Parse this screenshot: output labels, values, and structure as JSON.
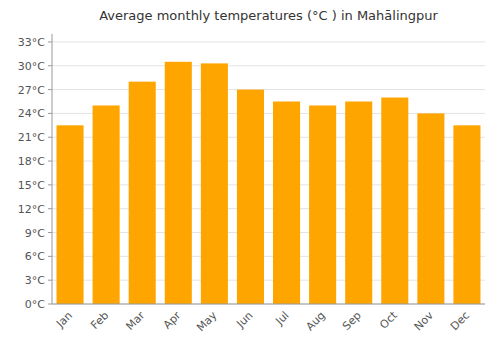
{
  "chart_data": {
    "type": "bar",
    "title": "Average monthly temperatures (°C ) in Mahā​lingpur",
    "categories": [
      "Jan",
      "Feb",
      "Mar",
      "Apr",
      "May",
      "Jun",
      "Jul",
      "Aug",
      "Sep",
      "Oct",
      "Nov",
      "Dec"
    ],
    "values": [
      22.5,
      25.0,
      28.0,
      30.5,
      30.3,
      27.0,
      25.5,
      25.0,
      25.5,
      26.0,
      24.0,
      22.5
    ],
    "color": "#FFA500",
    "ylim": [
      0,
      34
    ],
    "yticks": [
      {
        "value": 0,
        "label": "0°C"
      },
      {
        "value": 3,
        "label": "3°C"
      },
      {
        "value": 6,
        "label": "6°C"
      },
      {
        "value": 9,
        "label": "9°C"
      },
      {
        "value": 12,
        "label": "12°C"
      },
      {
        "value": 15,
        "label": "15°C"
      },
      {
        "value": 18,
        "label": "18°C"
      },
      {
        "value": 21,
        "label": "21°C"
      },
      {
        "value": 24,
        "label": "24°C"
      },
      {
        "value": 27,
        "label": "27°C"
      },
      {
        "value": 30,
        "label": "30°C"
      },
      {
        "value": 33,
        "label": "33°C"
      }
    ],
    "grid": true
  }
}
